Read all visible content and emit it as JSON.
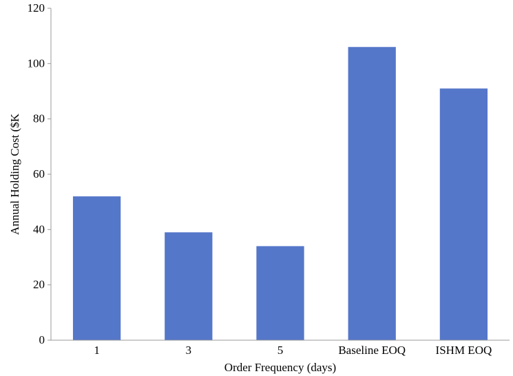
{
  "chart_data": {
    "type": "bar",
    "categories": [
      "1",
      "3",
      "5",
      "Baseline EOQ",
      "ISHM EOQ"
    ],
    "values": [
      52,
      39,
      34,
      106,
      91
    ],
    "xlabel": "Order Frequency (days)",
    "ylabel": "Annual Holding Cost ($K",
    "ylim": [
      0,
      120
    ],
    "yticks": [
      0,
      20,
      40,
      60,
      80,
      100,
      120
    ],
    "grid": false,
    "bar_color": "#5577C9",
    "axis_color": "#999999"
  }
}
